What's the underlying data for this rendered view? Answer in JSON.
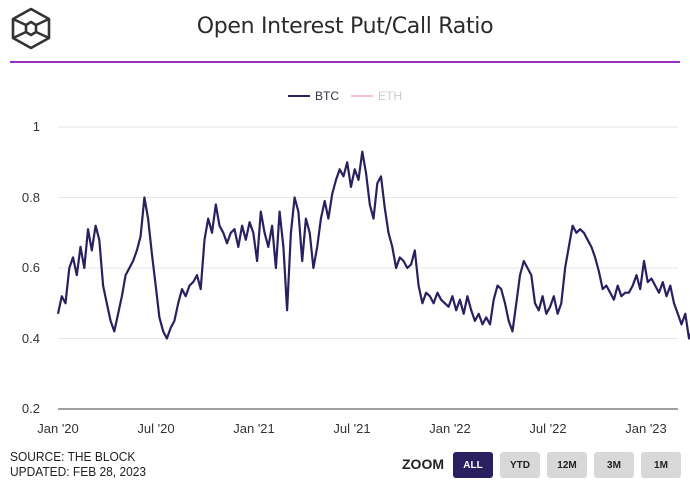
{
  "header": {
    "logo_icon": "cube-logo-icon",
    "title": "Open Interest Put/Call Ratio",
    "divider_color": "#9b30c0"
  },
  "legend": {
    "items": [
      {
        "label": "BTC",
        "color": "#2a2060",
        "active": true
      },
      {
        "label": "ETH",
        "color": "#f4c6cc",
        "active": false
      }
    ]
  },
  "footer": {
    "source": "SOURCE: THE BLOCK",
    "updated": "UPDATED: FEB 28, 2023"
  },
  "zoom": {
    "label": "ZOOM",
    "buttons": [
      {
        "label": "ALL",
        "active": true
      },
      {
        "label": "YTD",
        "active": false
      },
      {
        "label": "12M",
        "active": false
      },
      {
        "label": "3M",
        "active": false
      },
      {
        "label": "1M",
        "active": false
      }
    ],
    "active_color": "#2a2060",
    "inactive_color": "#d8d8d8"
  },
  "chart_data": {
    "type": "line",
    "title": "Open Interest Put/Call Ratio",
    "xlabel": "",
    "ylabel": "",
    "ylim": [
      0.2,
      1.0
    ],
    "yticks": [
      0.2,
      0.4,
      0.6,
      0.8,
      1
    ],
    "ytick_labels": [
      "0.2",
      "0.4",
      "0.6",
      "0.8",
      "1"
    ],
    "xticks": [
      "Jan '20",
      "Jul '20",
      "Jan '21",
      "Jul '21",
      "Jan '22",
      "Jul '22",
      "Jan '23"
    ],
    "grid": true,
    "legend_position": "top-center",
    "x_start": "2020-01-01",
    "x_step": "1 week",
    "series": [
      {
        "name": "BTC",
        "color": "#2a2060",
        "values": [
          0.47,
          0.52,
          0.5,
          0.6,
          0.63,
          0.58,
          0.66,
          0.6,
          0.71,
          0.65,
          0.72,
          0.68,
          0.55,
          0.5,
          0.45,
          0.42,
          0.47,
          0.52,
          0.58,
          0.6,
          0.62,
          0.65,
          0.69,
          0.8,
          0.74,
          0.64,
          0.55,
          0.46,
          0.42,
          0.4,
          0.43,
          0.45,
          0.5,
          0.54,
          0.52,
          0.55,
          0.56,
          0.58,
          0.54,
          0.68,
          0.74,
          0.7,
          0.78,
          0.72,
          0.7,
          0.67,
          0.7,
          0.71,
          0.66,
          0.72,
          0.68,
          0.73,
          0.7,
          0.62,
          0.76,
          0.7,
          0.66,
          0.72,
          0.6,
          0.76,
          0.66,
          0.48,
          0.7,
          0.8,
          0.76,
          0.62,
          0.74,
          0.7,
          0.6,
          0.66,
          0.74,
          0.79,
          0.74,
          0.81,
          0.85,
          0.88,
          0.86,
          0.9,
          0.83,
          0.88,
          0.85,
          0.93,
          0.87,
          0.78,
          0.74,
          0.84,
          0.86,
          0.77,
          0.7,
          0.66,
          0.6,
          0.63,
          0.62,
          0.6,
          0.61,
          0.65,
          0.55,
          0.5,
          0.53,
          0.52,
          0.5,
          0.53,
          0.51,
          0.5,
          0.49,
          0.52,
          0.48,
          0.51,
          0.47,
          0.52,
          0.48,
          0.45,
          0.47,
          0.44,
          0.46,
          0.44,
          0.51,
          0.55,
          0.54,
          0.5,
          0.45,
          0.42,
          0.5,
          0.58,
          0.62,
          0.6,
          0.58,
          0.5,
          0.48,
          0.52,
          0.47,
          0.49,
          0.52,
          0.47,
          0.5,
          0.6,
          0.66,
          0.72,
          0.7,
          0.71,
          0.7,
          0.68,
          0.66,
          0.63,
          0.59,
          0.54,
          0.55,
          0.53,
          0.51,
          0.55,
          0.52,
          0.53,
          0.53,
          0.55,
          0.58,
          0.54,
          0.62,
          0.56,
          0.57,
          0.55,
          0.53,
          0.56,
          0.52,
          0.55,
          0.5,
          0.47,
          0.44,
          0.47,
          0.4,
          0.43,
          0.41,
          0.45,
          0.42
        ]
      },
      {
        "name": "ETH",
        "color": "#f4c6cc",
        "values": [],
        "hidden": true
      }
    ]
  }
}
